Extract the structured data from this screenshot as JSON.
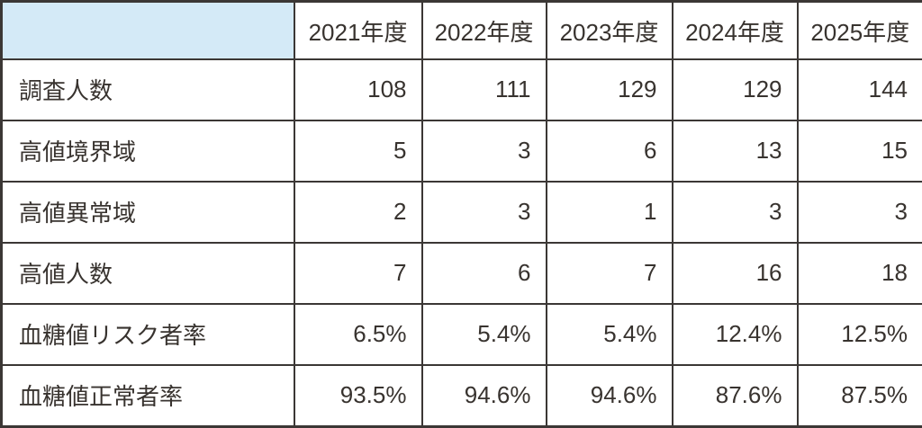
{
  "colors": {
    "header_bg": "#d4eaf7",
    "grid_border": "#3b3735",
    "text": "#38332f",
    "cell_bg": "#ffffff"
  },
  "chart_data": {
    "type": "table",
    "title": "",
    "columns": [
      "",
      "2021年度",
      "2022年度",
      "2023年度",
      "2024年度",
      "2025年度"
    ],
    "rows": [
      {
        "label": "調査人数",
        "values": [
          "108",
          "111",
          "129",
          "129",
          "144"
        ]
      },
      {
        "label": "高値境界域",
        "values": [
          "5",
          "3",
          "6",
          "13",
          "15"
        ]
      },
      {
        "label": "高値異常域",
        "values": [
          "2",
          "3",
          "1",
          "3",
          "3"
        ]
      },
      {
        "label": "高値人数",
        "values": [
          "7",
          "6",
          "7",
          "16",
          "18"
        ]
      },
      {
        "label": "血糖値リスク者率",
        "values": [
          "6.5%",
          "5.4%",
          "5.4%",
          "12.4%",
          "12.5%"
        ]
      },
      {
        "label": "血糖値正常者率",
        "values": [
          "93.5%",
          "94.6%",
          "94.6%",
          "87.6%",
          "87.5%"
        ]
      }
    ],
    "layout": {
      "grid": true,
      "header_position": "top",
      "label_column_align": "left",
      "value_align": "right"
    }
  }
}
